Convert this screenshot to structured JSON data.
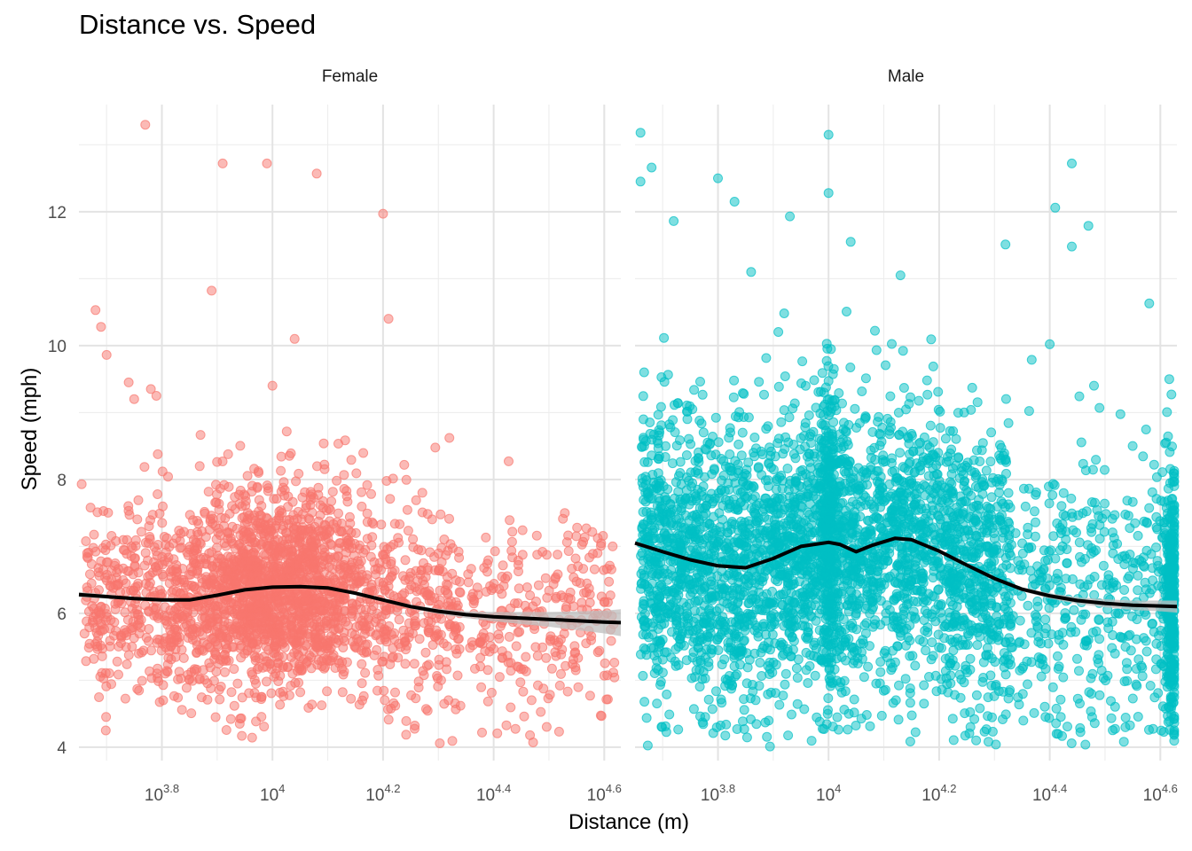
{
  "chart_data": {
    "type": "scatter",
    "title": "Distance vs. Speed",
    "xlabel": "Distance (m)",
    "ylabel": "Speed (mph)",
    "x_scale": "log10",
    "x_tick_exponents": [
      "3.8",
      "",
      "4.2",
      "4.4",
      "4.6"
    ],
    "x_tick_powers": [
      3.8,
      4.0,
      4.2,
      4.4,
      4.6
    ],
    "xlim_log10": [
      3.65,
      4.63
    ],
    "ylim": [
      4,
      13.3
    ],
    "y_ticks": [
      4,
      6,
      8,
      10,
      12
    ],
    "grid": true,
    "colors": {
      "female": "#F8766D",
      "male": "#00BFC4",
      "smooth": "#000000",
      "band": "#bdbdbd"
    },
    "panels": [
      {
        "name": "Female",
        "smooth_x_log10": [
          3.65,
          3.7,
          3.75,
          3.8,
          3.85,
          3.9,
          3.95,
          4.0,
          4.05,
          4.1,
          4.15,
          4.2,
          4.25,
          4.3,
          4.35,
          4.4,
          4.45,
          4.5,
          4.55,
          4.6,
          4.63
        ],
        "smooth_y": [
          6.28,
          6.25,
          6.22,
          6.2,
          6.2,
          6.27,
          6.35,
          6.39,
          6.4,
          6.38,
          6.3,
          6.2,
          6.1,
          6.03,
          5.98,
          5.95,
          5.93,
          5.91,
          5.89,
          5.87,
          5.86
        ],
        "band_halfwidth": [
          0.04,
          0.03,
          0.02,
          0.02,
          0.02,
          0.02,
          0.02,
          0.02,
          0.02,
          0.02,
          0.02,
          0.02,
          0.03,
          0.04,
          0.05,
          0.07,
          0.09,
          0.11,
          0.14,
          0.17,
          0.2
        ],
        "outliers": [
          [
            3.77,
            13.3
          ],
          [
            3.91,
            12.72
          ],
          [
            3.99,
            12.72
          ],
          [
            4.08,
            12.57
          ],
          [
            4.2,
            11.97
          ],
          [
            3.89,
            10.82
          ],
          [
            4.21,
            10.4
          ],
          [
            3.68,
            10.53
          ],
          [
            3.69,
            10.28
          ],
          [
            4.04,
            10.1
          ],
          [
            3.7,
            9.86
          ],
          [
            4.0,
            9.4
          ],
          [
            3.74,
            9.45
          ],
          [
            3.75,
            9.2
          ],
          [
            3.78,
            9.35
          ],
          [
            3.79,
            9.25
          ],
          [
            4.32,
            8.62
          ]
        ]
      },
      {
        "name": "Male",
        "smooth_x_log10": [
          3.65,
          3.7,
          3.75,
          3.8,
          3.85,
          3.9,
          3.95,
          4.0,
          4.02,
          4.05,
          4.08,
          4.12,
          4.15,
          4.2,
          4.25,
          4.3,
          4.35,
          4.4,
          4.45,
          4.5,
          4.55,
          4.6,
          4.63
        ],
        "smooth_y": [
          7.05,
          6.92,
          6.8,
          6.71,
          6.68,
          6.82,
          7.0,
          7.06,
          7.03,
          6.92,
          7.02,
          7.12,
          7.1,
          6.93,
          6.72,
          6.52,
          6.36,
          6.26,
          6.19,
          6.15,
          6.12,
          6.11,
          6.1
        ],
        "band_halfwidth": [
          0.03,
          0.02,
          0.02,
          0.02,
          0.02,
          0.02,
          0.02,
          0.02,
          0.02,
          0.02,
          0.02,
          0.02,
          0.02,
          0.02,
          0.02,
          0.02,
          0.03,
          0.04,
          0.05,
          0.06,
          0.07,
          0.08,
          0.09
        ],
        "outliers": [
          [
            3.66,
            13.18
          ],
          [
            4.0,
            13.15
          ],
          [
            3.66,
            12.45
          ],
          [
            3.68,
            12.66
          ],
          [
            3.8,
            12.5
          ],
          [
            3.83,
            12.15
          ],
          [
            4.0,
            12.28
          ],
          [
            4.44,
            12.72
          ],
          [
            4.41,
            12.06
          ],
          [
            4.47,
            11.79
          ],
          [
            4.44,
            11.48
          ],
          [
            3.93,
            11.93
          ],
          [
            3.72,
            11.86
          ],
          [
            4.04,
            11.55
          ],
          [
            4.32,
            11.51
          ],
          [
            3.86,
            11.1
          ],
          [
            4.13,
            11.05
          ],
          [
            4.58,
            10.63
          ],
          [
            4.4,
            10.02
          ],
          [
            4.48,
            9.4
          ],
          [
            4.49,
            9.07
          ],
          [
            4.62,
            9.27
          ],
          [
            4.55,
            8.5
          ]
        ]
      }
    ]
  }
}
